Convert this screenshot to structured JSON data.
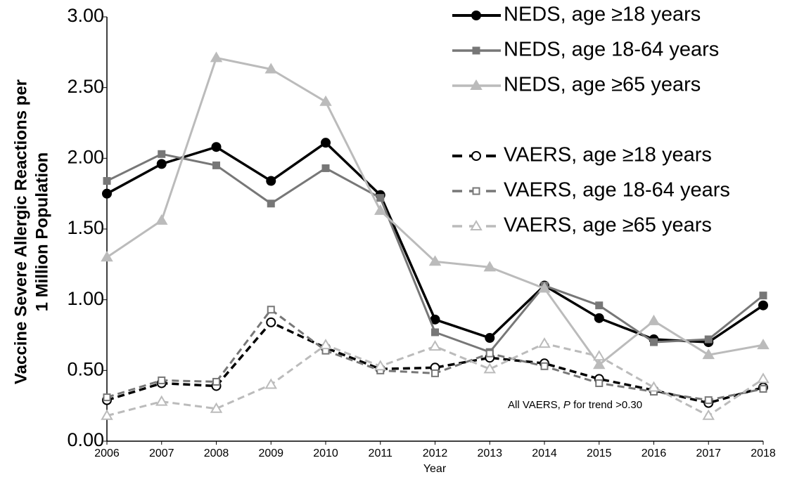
{
  "chart_data": {
    "type": "line",
    "ylabel": [
      "Vaccine Severe Allergic Reactions per",
      "1 Million Population"
    ],
    "xlabel": "Year",
    "annotation": [
      "All VAERS, ",
      "P",
      " for trend >0.30"
    ],
    "x": [
      2006,
      2007,
      2008,
      2009,
      2010,
      2011,
      2012,
      2013,
      2014,
      2015,
      2016,
      2017,
      2018
    ],
    "xlim": [
      2006,
      2018
    ],
    "xticks": [
      2006,
      2007,
      2008,
      2009,
      2010,
      2011,
      2012,
      2013,
      2014,
      2015,
      2016,
      2017,
      2018
    ],
    "ylim": [
      0,
      3
    ],
    "yticks": [
      {
        "value": 0,
        "label": "0.00"
      },
      {
        "value": 0.5,
        "label": "0.50"
      },
      {
        "value": 1,
        "label": "1.00"
      },
      {
        "value": 1.5,
        "label": "1.50"
      },
      {
        "value": 2,
        "label": "2.00"
      },
      {
        "value": 2.5,
        "label": "2.50"
      },
      {
        "value": 3,
        "label": "3.00"
      }
    ],
    "legend": "upper right",
    "series": [
      {
        "name": "NEDS, age ≥18 years",
        "color": "#000000",
        "dash": false,
        "marker": "circle",
        "filled": true,
        "values": [
          1.75,
          1.96,
          2.08,
          1.84,
          2.11,
          1.74,
          0.86,
          0.73,
          1.1,
          0.87,
          0.72,
          0.7,
          0.96
        ]
      },
      {
        "name": "NEDS, age 18-64 years",
        "color": "#777777",
        "dash": false,
        "marker": "square",
        "filled": true,
        "values": [
          1.84,
          2.03,
          1.95,
          1.68,
          1.93,
          1.72,
          0.77,
          0.63,
          1.1,
          0.96,
          0.7,
          0.72,
          1.03
        ]
      },
      {
        "name": "NEDS, age ≥65 years",
        "color": "#bbbbbb",
        "dash": false,
        "marker": "triangle",
        "filled": true,
        "values": [
          1.3,
          1.56,
          2.71,
          2.63,
          2.4,
          1.63,
          1.27,
          1.23,
          1.08,
          0.54,
          0.85,
          0.61,
          0.68
        ]
      },
      {
        "name": "VAERS, age ≥18 years",
        "color": "#000000",
        "dash": true,
        "marker": "circle",
        "filled": false,
        "values": [
          0.29,
          0.41,
          0.39,
          0.84,
          0.66,
          0.51,
          0.52,
          0.59,
          0.55,
          0.44,
          0.36,
          0.27,
          0.38
        ]
      },
      {
        "name": "VAERS, age 18-64 years",
        "color": "#777777",
        "dash": true,
        "marker": "square",
        "filled": false,
        "values": [
          0.31,
          0.43,
          0.42,
          0.93,
          0.64,
          0.5,
          0.48,
          0.62,
          0.53,
          0.41,
          0.35,
          0.29,
          0.37
        ]
      },
      {
        "name": "VAERS, age ≥65 years",
        "color": "#bbbbbb",
        "dash": true,
        "marker": "triangle",
        "filled": false,
        "values": [
          0.18,
          0.28,
          0.23,
          0.4,
          0.68,
          0.53,
          0.67,
          0.51,
          0.69,
          0.6,
          0.38,
          0.18,
          0.44
        ]
      }
    ]
  }
}
